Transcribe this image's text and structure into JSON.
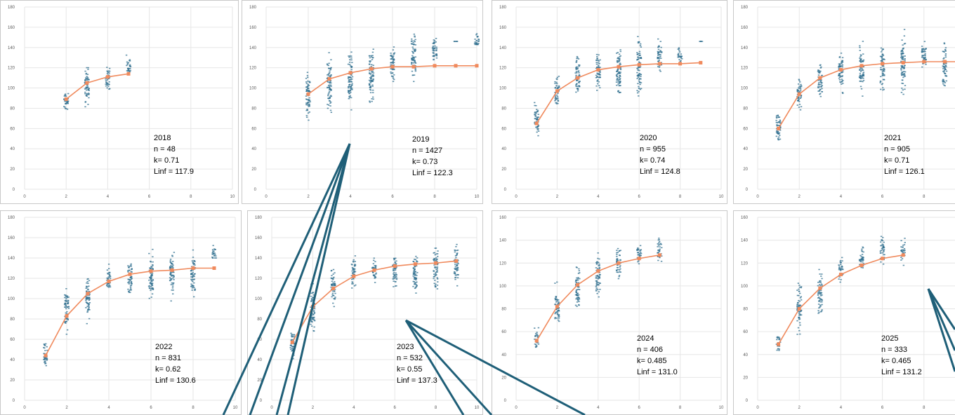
{
  "style": {
    "point_color": "#2e6e8e",
    "line_color": "#f08a5d",
    "grid_color": "#e6e6e6",
    "border_color": "#c8c8c8",
    "overlay_line_color": "#1f5f78",
    "tick_label_color": "#595959"
  },
  "chart_data": [
    {
      "type": "scatter",
      "year": "2018",
      "n": "n = 48",
      "k": "k= 0.71",
      "linf": "Linf = 117.9",
      "xlim": [
        0,
        10
      ],
      "ylim": [
        0,
        180
      ],
      "xticks": [
        0,
        2,
        4,
        6,
        8,
        10
      ],
      "yticks": [
        0,
        20,
        40,
        60,
        80,
        100,
        120,
        140,
        160,
        180
      ],
      "ages": [
        2,
        3,
        4,
        5
      ],
      "fitted": [
        89,
        105,
        111,
        114
      ],
      "ranges": [
        [
          70,
          100
        ],
        [
          74,
          128
        ],
        [
          93,
          127
        ],
        [
          108,
          136
        ]
      ],
      "grid": true
    },
    {
      "type": "scatter",
      "year": "2019",
      "n": "n = 1427",
      "k": "k= 0.73",
      "linf": "Linf = 122.3",
      "xlim": [
        0,
        10
      ],
      "ylim": [
        0,
        180
      ],
      "xticks": [
        0,
        2,
        4,
        6,
        8,
        10
      ],
      "yticks": [
        0,
        20,
        40,
        60,
        80,
        100,
        120,
        140,
        160,
        180
      ],
      "ages": [
        2,
        3,
        4,
        5,
        6,
        7,
        8,
        9,
        10
      ],
      "fitted": [
        94,
        109,
        115,
        119,
        121,
        121,
        122,
        122,
        122
      ],
      "ranges": [
        [
          65,
          122
        ],
        [
          65,
          137
        ],
        [
          70,
          140
        ],
        [
          72,
          147
        ],
        [
          100,
          150
        ],
        [
          105,
          166
        ],
        [
          123,
          160
        ],
        [
          146,
          148
        ],
        [
          143,
          166
        ]
      ],
      "grid": true
    },
    {
      "type": "scatter",
      "year": "2020",
      "n": "n = 955",
      "k": "k= 0.74",
      "linf": "Linf = 124.8",
      "xlim": [
        0,
        10
      ],
      "ylim": [
        0,
        180
      ],
      "xticks": [
        0,
        2,
        4,
        6,
        8,
        10
      ],
      "yticks": [
        0,
        20,
        40,
        60,
        80,
        100,
        120,
        140,
        160,
        180
      ],
      "ages": [
        1,
        2,
        3,
        4,
        5,
        6,
        7,
        8,
        9
      ],
      "fitted": [
        65,
        97,
        110,
        118,
        121,
        123,
        124,
        124,
        125
      ],
      "ranges": [
        [
          45,
          90
        ],
        [
          75,
          118
        ],
        [
          88,
          141
        ],
        [
          90,
          140
        ],
        [
          80,
          150
        ],
        [
          85,
          157
        ],
        [
          113,
          155
        ],
        [
          124,
          148
        ],
        [
          146,
          148
        ]
      ],
      "grid": true
    },
    {
      "type": "scatter",
      "year": "2021",
      "n": "n = 905",
      "k": "k= 0.71",
      "linf": "Linf = 126.1",
      "xlim": [
        0,
        10
      ],
      "ylim": [
        0,
        180
      ],
      "xticks": [
        0,
        2,
        4,
        6,
        8,
        10
      ],
      "yticks": [
        0,
        20,
        40,
        60,
        80,
        100,
        120,
        140,
        160,
        180
      ],
      "ages": [
        1,
        2,
        3,
        4,
        5,
        6,
        7,
        8,
        9,
        10
      ],
      "fitted": [
        60,
        94,
        110,
        118,
        122,
        124,
        125,
        126,
        126,
        126
      ],
      "ranges": [
        [
          37,
          85
        ],
        [
          72,
          118
        ],
        [
          80,
          130
        ],
        [
          90,
          143
        ],
        [
          88,
          152
        ],
        [
          90,
          148
        ],
        [
          85,
          160
        ],
        [
          115,
          155
        ],
        [
          90,
          150
        ],
        [
          100,
          140
        ]
      ],
      "grid": true
    },
    {
      "type": "scatter",
      "year": "2022",
      "n": "n = 831",
      "k": "k= 0.62",
      "linf": "Linf = 130.6",
      "xlim": [
        0,
        10
      ],
      "ylim": [
        0,
        180
      ],
      "xticks": [
        0,
        2,
        4,
        6,
        8,
        10
      ],
      "yticks": [
        0,
        20,
        40,
        60,
        80,
        100,
        120,
        140,
        160,
        180
      ],
      "ages": [
        1,
        2,
        3,
        4,
        5,
        6,
        7,
        8,
        9
      ],
      "fitted": [
        44,
        83,
        105,
        117,
        124,
        127,
        128,
        130,
        130
      ],
      "ranges": [
        [
          30,
          65
        ],
        [
          65,
          120
        ],
        [
          68,
          130
        ],
        [
          100,
          135
        ],
        [
          93,
          140
        ],
        [
          90,
          152
        ],
        [
          93,
          150
        ],
        [
          95,
          152
        ],
        [
          140,
          160
        ]
      ],
      "grid": true
    },
    {
      "type": "scatter",
      "year": "2023",
      "n": "n = 532",
      "k": "k= 0.55",
      "linf": "Linf = 137.3",
      "xlim": [
        0,
        10
      ],
      "ylim": [
        0,
        180
      ],
      "xticks": [
        0,
        2,
        4,
        6,
        8,
        10
      ],
      "yticks": [
        0,
        20,
        40,
        60,
        80,
        100,
        120,
        140,
        160,
        180
      ],
      "ages": [
        1,
        2,
        3,
        4,
        5,
        6,
        7,
        8,
        9
      ],
      "fitted": [
        57,
        92,
        110,
        122,
        128,
        132,
        134,
        135,
        137
      ],
      "ranges": [
        [
          35,
          77
        ],
        [
          55,
          120
        ],
        [
          90,
          137
        ],
        [
          105,
          147
        ],
        [
          110,
          147
        ],
        [
          100,
          150
        ],
        [
          95,
          152
        ],
        [
          98,
          160
        ],
        [
          105,
          158
        ]
      ],
      "grid": true
    },
    {
      "type": "scatter",
      "year": "2024",
      "n": "n = 406",
      "k": "k= 0.485",
      "linf": "Linf = 131.0",
      "xlim": [
        0,
        10
      ],
      "ylim": [
        0,
        160
      ],
      "xticks": [
        0,
        2,
        4,
        6,
        8,
        10
      ],
      "yticks": [
        0,
        20,
        40,
        60,
        80,
        100,
        120,
        140,
        160
      ],
      "ages": [
        1,
        2,
        3,
        4,
        5,
        6,
        7
      ],
      "fitted": [
        52,
        82,
        101,
        113,
        120,
        124,
        127
      ],
      "ranges": [
        [
          42,
          68
        ],
        [
          57,
          105
        ],
        [
          70,
          125
        ],
        [
          80,
          135
        ],
        [
          98,
          140
        ],
        [
          117,
          143
        ],
        [
          118,
          148
        ]
      ],
      "grid": true
    },
    {
      "type": "scatter",
      "year": "2025",
      "n": "n = 333",
      "k": "k= 0.465",
      "linf": "Linf = 131.2",
      "xlim": [
        0,
        10
      ],
      "ylim": [
        0,
        160
      ],
      "xticks": [
        0,
        2,
        4,
        6,
        8,
        10
      ],
      "yticks": [
        0,
        20,
        40,
        60,
        80,
        100,
        120,
        140,
        160
      ],
      "ages": [
        1,
        2,
        3,
        4,
        5,
        6,
        7
      ],
      "fitted": [
        49,
        80,
        98,
        110,
        118,
        124,
        127
      ],
      "ranges": [
        [
          36,
          62
        ],
        [
          55,
          110
        ],
        [
          65,
          120
        ],
        [
          100,
          130
        ],
        [
          110,
          142
        ],
        [
          118,
          153
        ],
        [
          118,
          145
        ]
      ],
      "grid": true
    }
  ]
}
